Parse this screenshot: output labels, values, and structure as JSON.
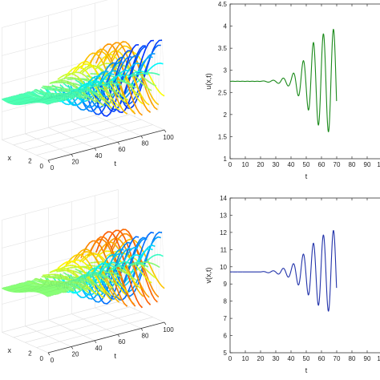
{
  "chart_data": [
    {
      "type": "surface",
      "panel": "top-left",
      "axes": {
        "x": {
          "label": "t",
          "ticks": [
            "0",
            "20",
            "40",
            "60",
            "80",
            "100"
          ],
          "range": [
            0,
            100
          ]
        },
        "y": {
          "label": "x",
          "ticks": [
            "0",
            "2"
          ]
        }
      },
      "colormap": "jet",
      "grid": true,
      "description_values": {
        "oscillation_onset_t": 30
      }
    },
    {
      "type": "line",
      "panel": "top-right",
      "xlabel": "t",
      "ylabel": "u(x,t)",
      "xlim": [
        0,
        100
      ],
      "ylim": [
        1,
        4.5
      ],
      "xticks": [
        "0",
        "10",
        "20",
        "30",
        "40",
        "50",
        "60",
        "70",
        "80",
        "90",
        "100"
      ],
      "yticks": [
        "1",
        "1.5",
        "2",
        "2.5",
        "3",
        "3.5",
        "4",
        "4.5"
      ],
      "color": "#1a8a1a",
      "series": [
        {
          "equilibrium": 2.75,
          "onset_t": 20,
          "period": 6.6,
          "envelope": [
            [
              20,
              0.005
            ],
            [
              30,
              0.03
            ],
            [
              40,
              0.12
            ],
            [
              50,
              0.55
            ],
            [
              55,
              0.9
            ],
            [
              60,
              1.05
            ],
            [
              65,
              1.15
            ],
            [
              70,
              1.2
            ]
          ],
          "peak_max": 3.95,
          "trough_min": 1.5,
          "t_end": 70
        }
      ]
    },
    {
      "type": "surface",
      "panel": "bottom-left",
      "axes": {
        "x": {
          "label": "t",
          "ticks": [
            "0",
            "20",
            "40",
            "60",
            "80",
            "100"
          ],
          "range": [
            0,
            100
          ]
        },
        "y": {
          "label": "x",
          "ticks": [
            "0",
            "2"
          ]
        }
      },
      "colormap": "jet",
      "grid": true
    },
    {
      "type": "line",
      "panel": "bottom-right",
      "xlabel": "t",
      "ylabel": "v(x,t)",
      "xlim": [
        0,
        100
      ],
      "ylim": [
        5,
        14
      ],
      "xticks": [
        "0",
        "10",
        "20",
        "30",
        "40",
        "50",
        "60",
        "70",
        "80",
        "90",
        "100"
      ],
      "yticks": [
        "5",
        "6",
        "7",
        "8",
        "9",
        "10",
        "11",
        "12",
        "13",
        "14"
      ],
      "color": "#2233aa",
      "series": [
        {
          "equilibrium": 9.7,
          "onset_t": 20,
          "period": 6.6,
          "envelope": [
            [
              20,
              0.01
            ],
            [
              30,
              0.08
            ],
            [
              40,
              0.35
            ],
            [
              50,
              1.2
            ],
            [
              55,
              1.7
            ],
            [
              60,
              2.1
            ],
            [
              65,
              2.3
            ],
            [
              70,
              2.5
            ]
          ],
          "peak_max": 12.0,
          "trough_min": 6.8,
          "t_end": 70
        }
      ]
    }
  ]
}
